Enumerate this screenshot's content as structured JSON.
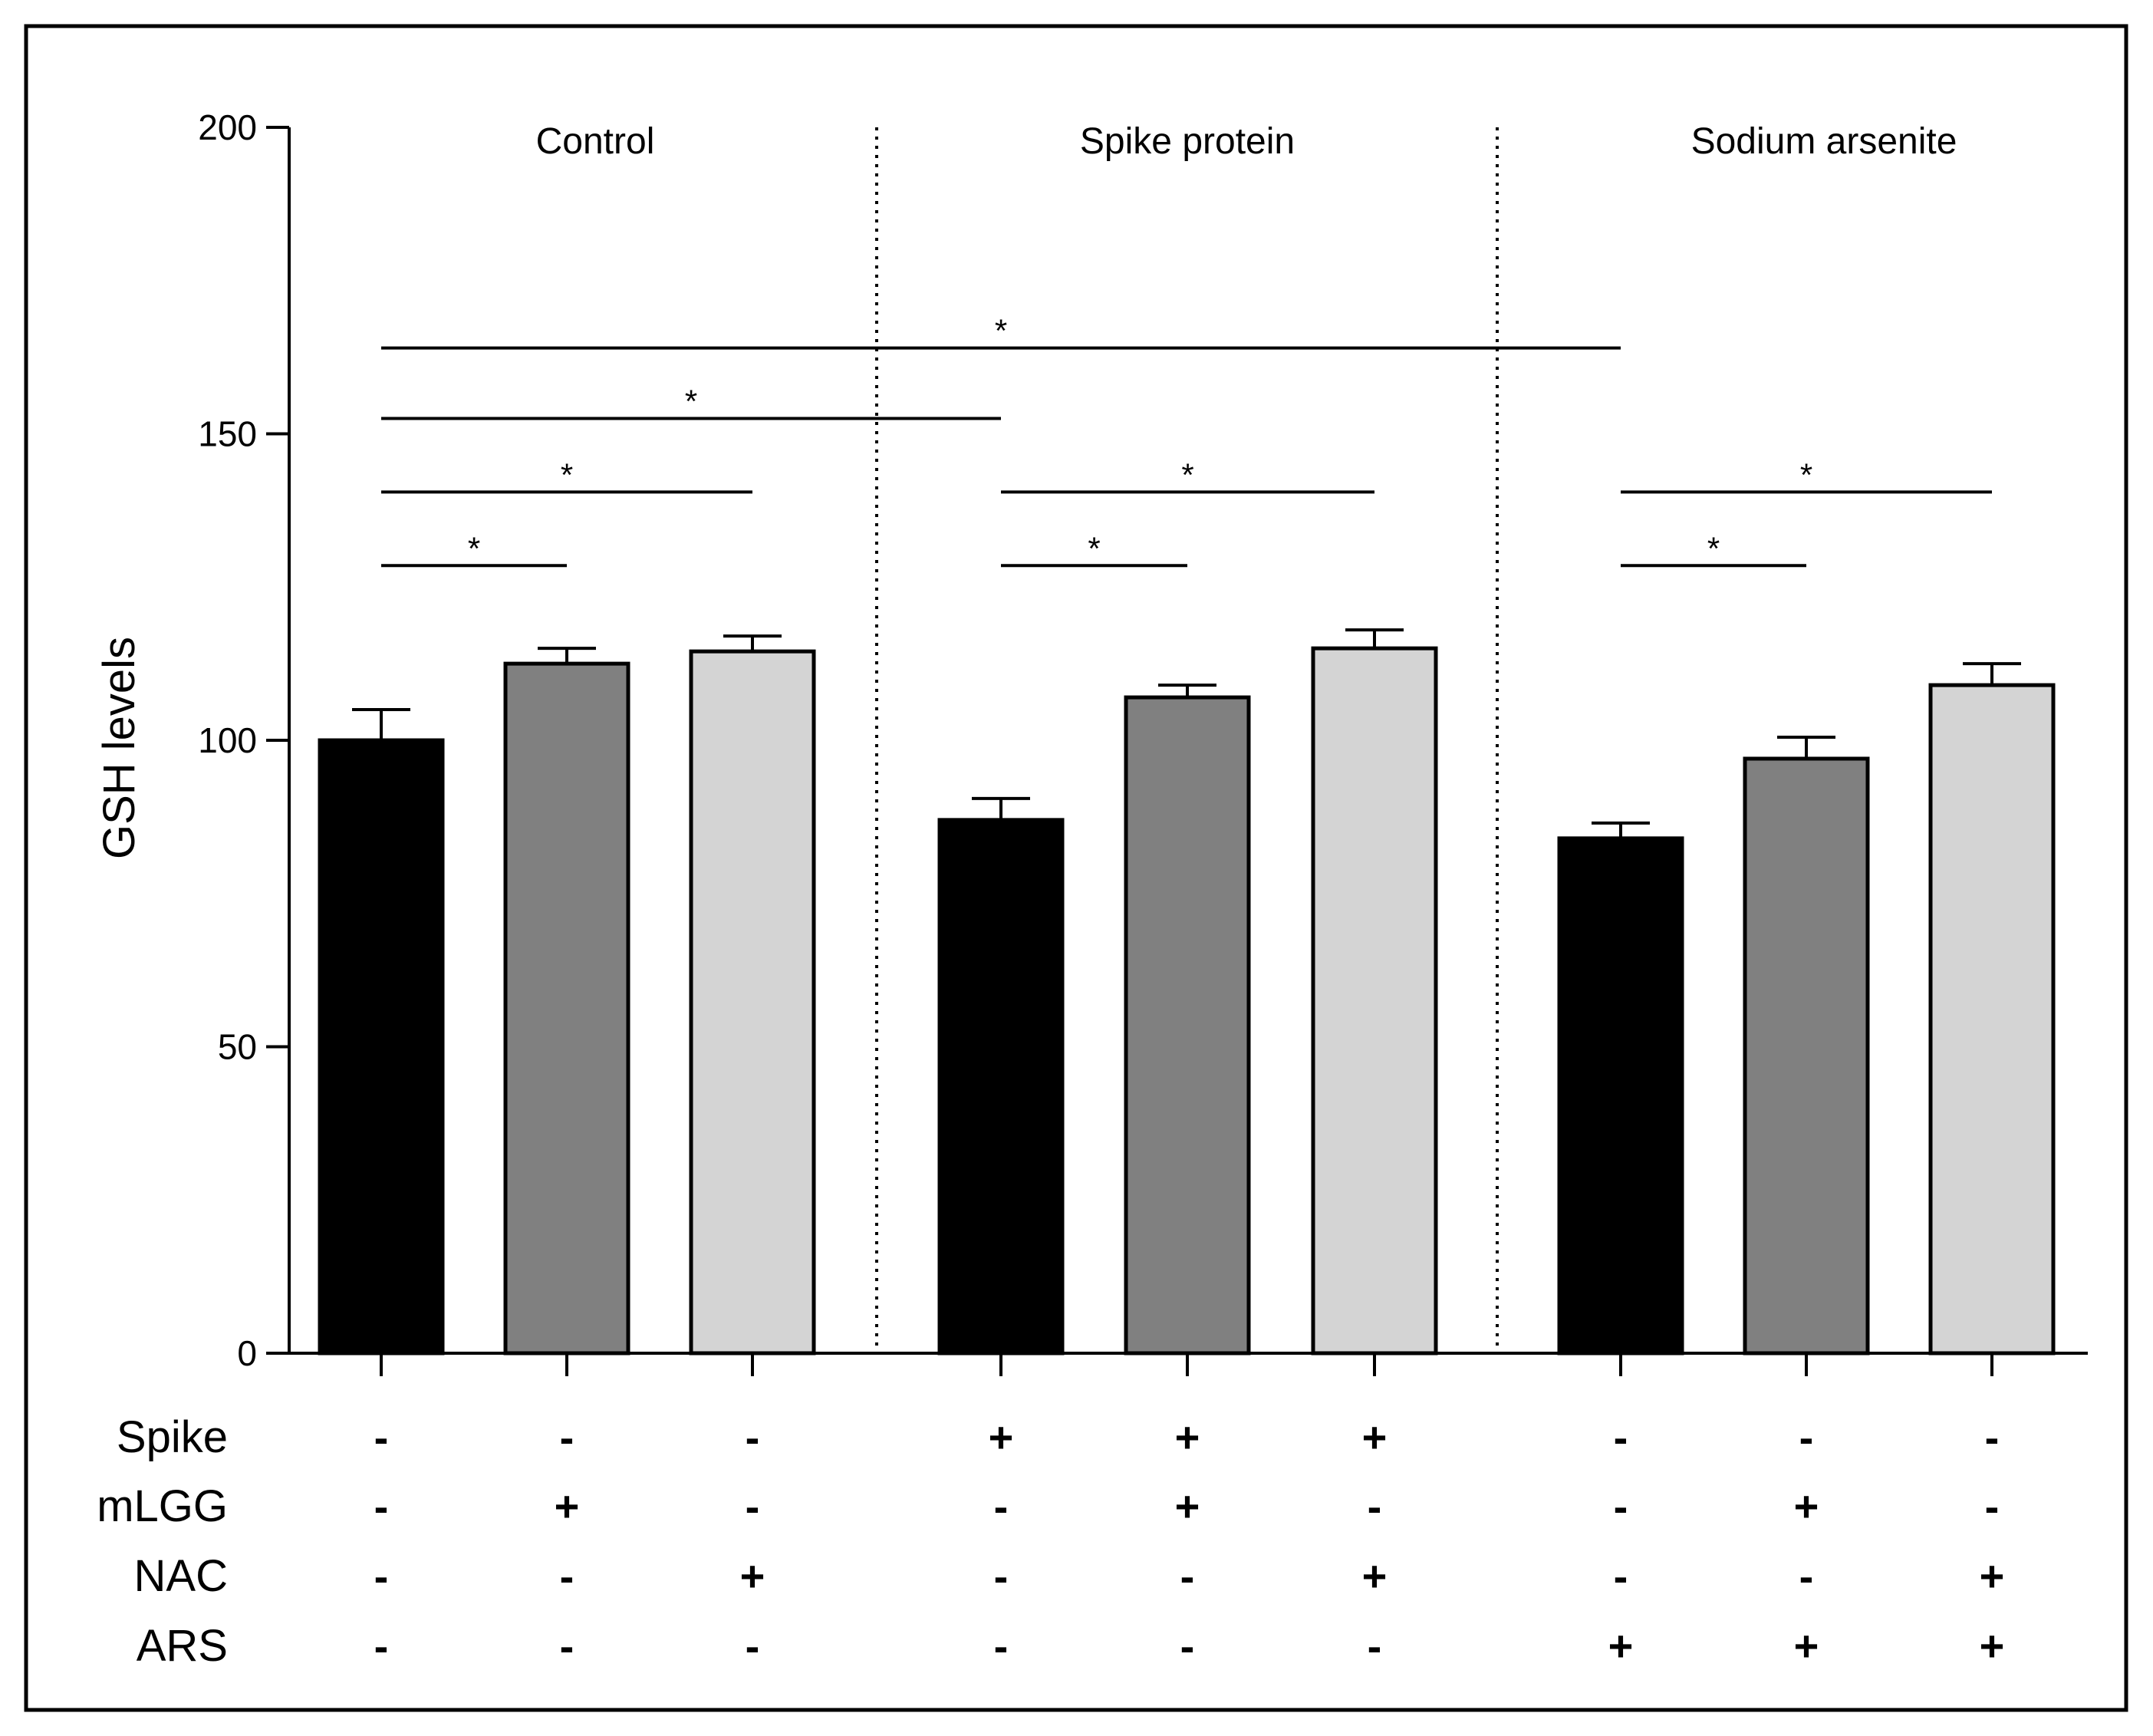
{
  "chart_data": {
    "type": "bar",
    "ylabel": "GSH levels",
    "ylim": [
      0,
      200
    ],
    "yticks": [
      0,
      50,
      100,
      150,
      200
    ],
    "groups": [
      {
        "title": "Control",
        "bars": [
          0,
          1,
          2
        ]
      },
      {
        "title": "Spike protein",
        "bars": [
          3,
          4,
          5
        ]
      },
      {
        "title": "Sodium arsenite",
        "bars": [
          6,
          7,
          8
        ]
      }
    ],
    "bars": [
      {
        "value": 100,
        "error": 5,
        "color": "#000000"
      },
      {
        "value": 112.5,
        "error": 2.5,
        "color": "#808080"
      },
      {
        "value": 114.5,
        "error": 2.5,
        "color": "#d4d4d4"
      },
      {
        "value": 87,
        "error": 3.5,
        "color": "#000000"
      },
      {
        "value": 107,
        "error": 2,
        "color": "#808080"
      },
      {
        "value": 115,
        "error": 3,
        "color": "#d4d4d4"
      },
      {
        "value": 84,
        "error": 2.5,
        "color": "#000000"
      },
      {
        "value": 97,
        "error": 3.5,
        "color": "#808080"
      },
      {
        "value": 109,
        "error": 3.5,
        "color": "#d4d4d4"
      }
    ],
    "treatment_rows": [
      {
        "label": "Spike",
        "signs": [
          "-",
          "-",
          "-",
          "+",
          "+",
          "+",
          "-",
          "-",
          "-"
        ]
      },
      {
        "label": "mLGG",
        "signs": [
          "-",
          "+",
          "-",
          "-",
          "+",
          "-",
          "-",
          "+",
          "-"
        ]
      },
      {
        "label": "NAC",
        "signs": [
          "-",
          "-",
          "+",
          "-",
          "-",
          "+",
          "-",
          "-",
          "+"
        ]
      },
      {
        "label": "ARS",
        "signs": [
          "-",
          "-",
          "-",
          "-",
          "-",
          "-",
          "+",
          "+",
          "+"
        ]
      }
    ],
    "significance": [
      {
        "from": 0,
        "to": 6,
        "y": 164,
        "label": "*"
      },
      {
        "from": 0,
        "to": 3,
        "y": 152.5,
        "label": "*"
      },
      {
        "from": 0,
        "to": 2,
        "y": 140.5,
        "label": "*"
      },
      {
        "from": 0,
        "to": 1,
        "y": 128.5,
        "label": "*"
      },
      {
        "from": 3,
        "to": 5,
        "y": 140.5,
        "label": "*"
      },
      {
        "from": 3,
        "to": 4,
        "y": 128.5,
        "label": "*"
      },
      {
        "from": 6,
        "to": 8,
        "y": 140.5,
        "label": "*"
      },
      {
        "from": 6,
        "to": 7,
        "y": 128.5,
        "label": "*"
      }
    ],
    "grid": false
  }
}
